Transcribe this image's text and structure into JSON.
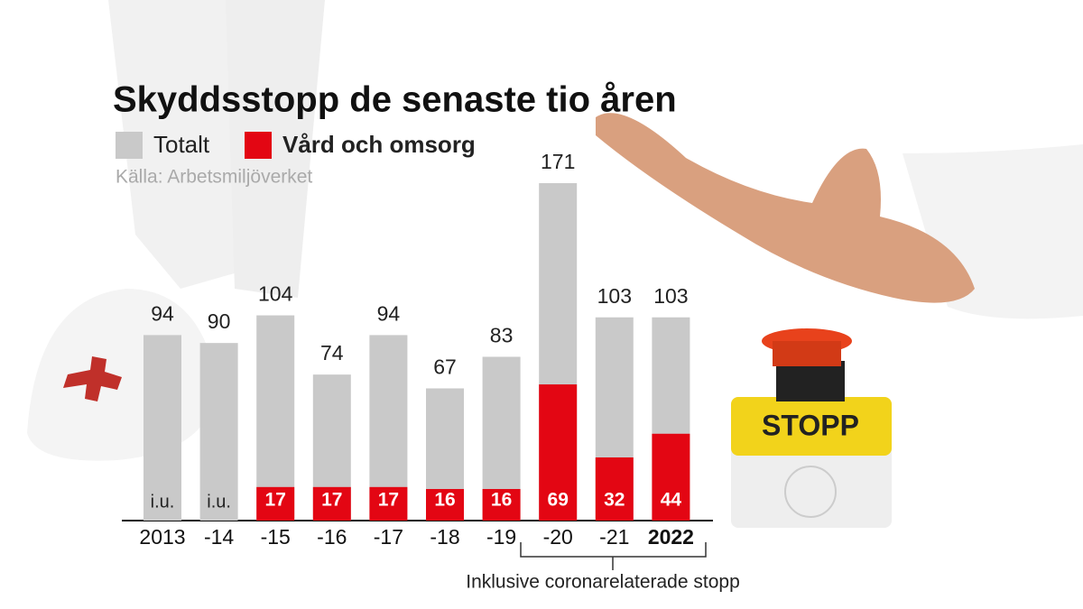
{
  "chart_data": {
    "type": "overlap-bar",
    "title": "Skyddsstopp de senaste tio åren",
    "source": "Källa: Arbetsmiljöverket",
    "categories": [
      "2013",
      "-14",
      "-15",
      "-16",
      "-17",
      "-18",
      "-19",
      "-20",
      "-21",
      "2022"
    ],
    "series": [
      {
        "name": "Totalt",
        "color": "#c9c9c9",
        "values": [
          94,
          90,
          104,
          74,
          94,
          67,
          83,
          171,
          103,
          103
        ]
      },
      {
        "name": "Vård och omsorg",
        "color": "#e30613",
        "values": [
          null,
          null,
          17,
          17,
          17,
          16,
          16,
          69,
          32,
          44
        ],
        "value_labels": [
          "i.u.",
          "i.u.",
          "17",
          "17",
          "17",
          "16",
          "16",
          "69",
          "32",
          "44"
        ]
      }
    ],
    "annotation": "Inklusive coronarelaterade stopp",
    "image_text": "STOPP"
  }
}
